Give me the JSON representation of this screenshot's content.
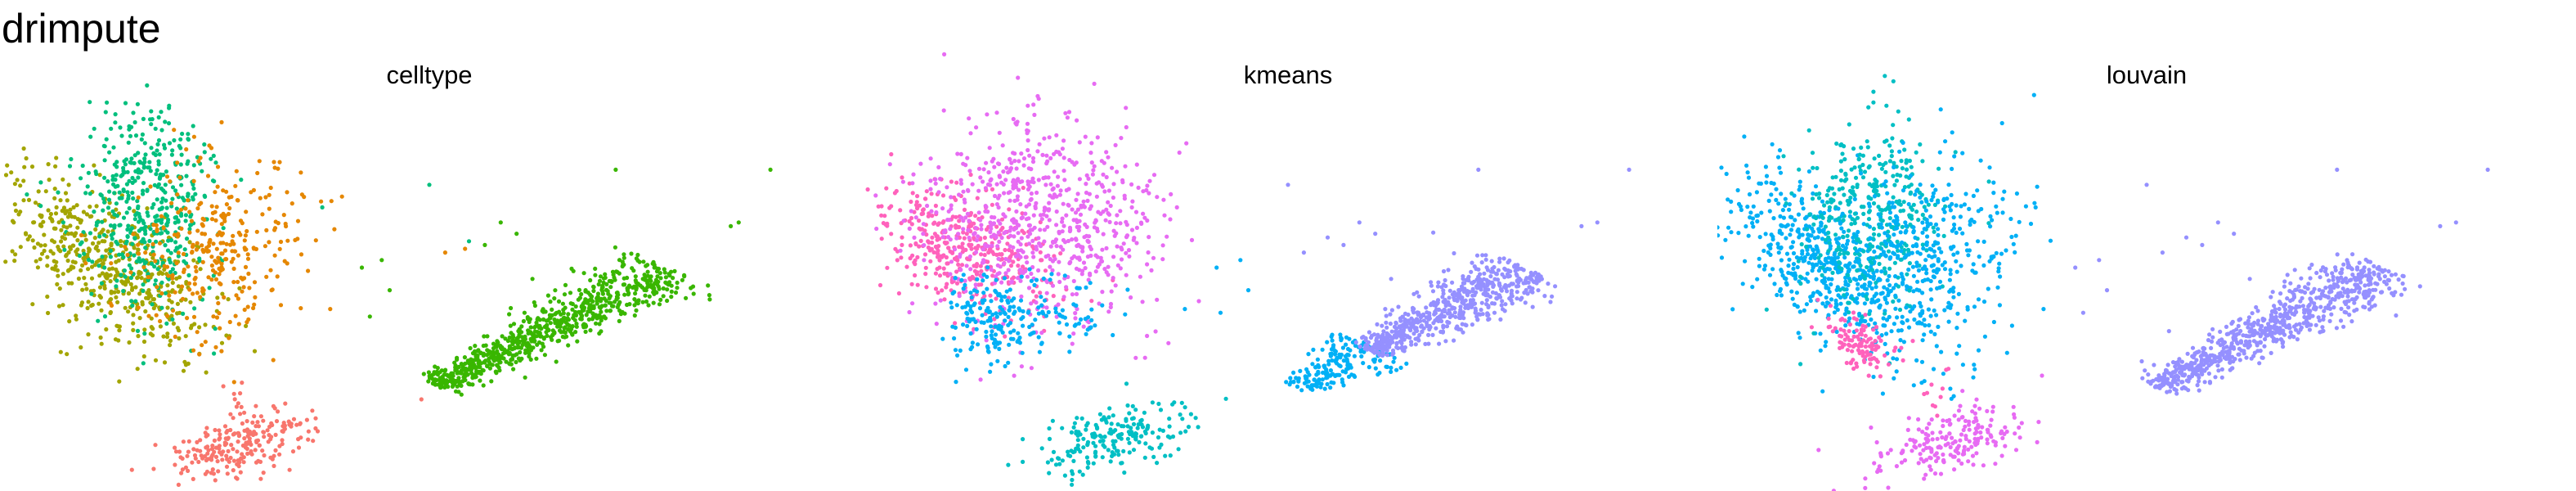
{
  "title": "drimpute",
  "colors": {
    "red": "#F8766D",
    "olive": "#A3A500",
    "green_cell": "#00BF7D",
    "orange": "#E58700",
    "bright_green": "#39B600",
    "teal": "#00BFC4",
    "blue": "#00B0F6",
    "purple": "#9590FF",
    "magenta": "#E76BF3",
    "pink": "#FF62BC"
  },
  "chart_data": [
    {
      "type": "scatter",
      "title": "celltype",
      "xlim": [
        0,
        100
      ],
      "ylim": [
        0,
        100
      ],
      "grid": false,
      "axes": false,
      "legend": "none",
      "clusters": [
        {
          "color": "olive",
          "n": 520,
          "center": [
            9.3,
            56
          ],
          "spread": [
            5.2,
            12
          ],
          "tilt": -0.9
        },
        {
          "color": "green_cell",
          "n": 420,
          "center": [
            14.5,
            71
          ],
          "spread": [
            4.5,
            13
          ],
          "tilt": -0.1
        },
        {
          "color": "green_cell",
          "n": 30,
          "center": [
            15.5,
            86
          ],
          "spread": [
            2.5,
            6
          ],
          "tilt": 0
        },
        {
          "color": "orange",
          "n": 300,
          "center": [
            23.5,
            60
          ],
          "spread": [
            5.5,
            13
          ],
          "tilt": 0.2
        },
        {
          "color": "red",
          "n": 220,
          "center": [
            26.5,
            8.5
          ],
          "spread": [
            4,
            5
          ],
          "tilt": 0.6
        },
        {
          "color": "red",
          "n": 10,
          "center": [
            25.5,
            20
          ],
          "spread": [
            1.2,
            6
          ],
          "tilt": 0
        },
        {
          "color": "bright_green",
          "n": 760,
          "line": [
            [
              51,
              23.5
            ],
            [
              80,
              55
            ]
          ],
          "width": 2.3
        }
      ],
      "scatter_points": [
        [
          17.2,
          98,
          "green_cell"
        ],
        [
          4.5,
          64,
          "olive"
        ],
        [
          3,
          71,
          "olive"
        ],
        [
          36.5,
          71,
          "green_cell"
        ],
        [
          50,
          77,
          "green_cell"
        ],
        [
          55,
          62,
          "green_cell"
        ],
        [
          37.5,
          44,
          "orange"
        ],
        [
          52,
          59,
          "orange"
        ],
        [
          54.5,
          60,
          "orange"
        ],
        [
          49,
          20,
          "red"
        ],
        [
          73.5,
          81,
          "bright_green"
        ],
        [
          93,
          81,
          "bright_green"
        ],
        [
          89,
          67,
          "bright_green"
        ],
        [
          88,
          66,
          "bright_green"
        ],
        [
          41.5,
          55,
          "bright_green"
        ],
        [
          42.5,
          42,
          "bright_green"
        ],
        [
          45,
          49,
          "bright_green"
        ],
        [
          59,
          67,
          "bright_green"
        ],
        [
          61,
          64,
          "bright_green"
        ],
        [
          57,
          61,
          "bright_green"
        ],
        [
          63,
          52,
          "bright_green"
        ],
        [
          44,
          57,
          "bright_green"
        ],
        [
          62,
          43,
          "bright_green"
        ],
        [
          66,
          30,
          "bright_green"
        ]
      ]
    },
    {
      "type": "scatter",
      "title": "kmeans",
      "xlim": [
        0,
        100
      ],
      "ylim": [
        0,
        100
      ],
      "grid": false,
      "axes": false,
      "legend": "none",
      "clusters": [
        {
          "color": "pink",
          "n": 380,
          "center": [
            9.5,
            60
          ],
          "spread": [
            5,
            8
          ],
          "tilt": -0.5
        },
        {
          "color": "magenta",
          "n": 420,
          "center": [
            15,
            70
          ],
          "spread": [
            6,
            13
          ],
          "tilt": 0
        },
        {
          "color": "magenta",
          "n": 260,
          "center": [
            24.5,
            63
          ],
          "spread": [
            5.5,
            13
          ],
          "tilt": 0.2
        },
        {
          "color": "blue",
          "n": 160,
          "center": [
            12.5,
            41
          ],
          "spread": [
            3,
            6
          ],
          "tilt": 0
        },
        {
          "color": "blue",
          "n": 60,
          "center": [
            22,
            44
          ],
          "spread": [
            3.5,
            5
          ],
          "tilt": 0
        },
        {
          "color": "teal",
          "n": 200,
          "center": [
            27.5,
            9.5
          ],
          "spread": [
            4,
            5
          ],
          "tilt": 0.5
        },
        {
          "color": "blue",
          "n": 180,
          "line": [
            [
              51,
              23
            ],
            [
              61,
              34
            ]
          ],
          "width": 2.2
        },
        {
          "color": "purple",
          "n": 580,
          "line": [
            [
              60,
              33
            ],
            [
              80,
              55
            ]
          ],
          "width": 2.6
        }
      ],
      "scatter_points": [
        [
          17.2,
          98,
          "magenta"
        ],
        [
          4,
          64,
          "magenta"
        ],
        [
          2.5,
          70,
          "magenta"
        ],
        [
          36,
          71,
          "magenta"
        ],
        [
          50,
          77,
          "purple"
        ],
        [
          55,
          63,
          "purple"
        ],
        [
          37,
          44,
          "blue"
        ],
        [
          52,
          59,
          "purple"
        ],
        [
          74,
          81,
          "purple"
        ],
        [
          93,
          81,
          "purple"
        ],
        [
          89,
          67,
          "purple"
        ],
        [
          87,
          66,
          "purple"
        ],
        [
          41,
          55,
          "blue"
        ],
        [
          41.5,
          43,
          "blue"
        ],
        [
          45,
          49,
          "blue"
        ],
        [
          59,
          67,
          "purple"
        ],
        [
          61,
          64,
          "purple"
        ],
        [
          57,
          61,
          "purple"
        ],
        [
          63,
          52,
          "purple"
        ],
        [
          44,
          57,
          "blue"
        ]
      ]
    },
    {
      "type": "scatter",
      "title": "louvain",
      "xlim": [
        0,
        100
      ],
      "ylim": [
        0,
        100
      ],
      "grid": false,
      "axes": false,
      "legend": "none",
      "clusters": [
        {
          "color": "blue",
          "n": 560,
          "center": [
            10,
            56
          ],
          "spread": [
            5.5,
            12
          ],
          "tilt": -0.7
        },
        {
          "color": "teal",
          "n": 360,
          "center": [
            15,
            70
          ],
          "spread": [
            4.5,
            12
          ],
          "tilt": 0
        },
        {
          "color": "blue",
          "n": 320,
          "center": [
            23.5,
            58
          ],
          "spread": [
            5.5,
            14
          ],
          "tilt": 0.2
        },
        {
          "color": "pink",
          "n": 110,
          "center": [
            14,
            35
          ],
          "spread": [
            2.2,
            4
          ],
          "tilt": -0.6
        },
        {
          "color": "magenta",
          "n": 200,
          "center": [
            24.5,
            8.5
          ],
          "spread": [
            4,
            5
          ],
          "tilt": 0.6
        },
        {
          "color": "pink",
          "n": 10,
          "center": [
            23.5,
            20
          ],
          "spread": [
            1.5,
            5
          ],
          "tilt": 0
        },
        {
          "color": "purple",
          "n": 760,
          "line": [
            [
              51,
              23
            ],
            [
              80,
              55
            ]
          ],
          "width": 2.4
        }
      ],
      "scatter_points": [
        [
          17.2,
          98,
          "teal"
        ],
        [
          4,
          64,
          "blue"
        ],
        [
          2.5,
          70,
          "blue"
        ],
        [
          36,
          71,
          "blue"
        ],
        [
          50,
          77,
          "purple"
        ],
        [
          55,
          63,
          "purple"
        ],
        [
          37,
          44,
          "blue"
        ],
        [
          52,
          59,
          "purple"
        ],
        [
          74,
          81,
          "purple"
        ],
        [
          93,
          81,
          "purple"
        ],
        [
          89,
          67,
          "purple"
        ],
        [
          87,
          66,
          "purple"
        ],
        [
          41,
          55,
          "purple"
        ],
        [
          42,
          43,
          "purple"
        ],
        [
          45,
          49,
          "purple"
        ],
        [
          59,
          67,
          "purple"
        ],
        [
          61,
          64,
          "purple"
        ],
        [
          57,
          61,
          "purple"
        ],
        [
          63,
          52,
          "purple"
        ],
        [
          44,
          57,
          "purple"
        ]
      ]
    }
  ]
}
